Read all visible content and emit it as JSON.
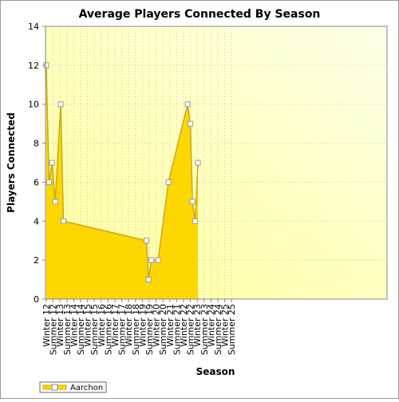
{
  "chart_data": {
    "type": "area",
    "title": "Average Players Connected By Season",
    "xlabel": "Season",
    "ylabel": "Players Connected",
    "ylim": [
      0,
      14
    ],
    "y_ticks": [
      0,
      2,
      4,
      6,
      8,
      10,
      12,
      14
    ],
    "categories": [
      "Winter 12",
      "Summer 12",
      "Winter 13",
      "Summer 13",
      "Winter 14",
      "Summer 14",
      "Winter 15",
      "Summer 15",
      "Winter 16",
      "Summer 16",
      "Winter 17",
      "Summer 17",
      "Winter 18",
      "Summer 18",
      "Winter 19",
      "Summer 19",
      "Winter 20",
      "Summer 20",
      "Winter 21",
      "Summer 21",
      "Winter 22",
      "Summer 22",
      "Winter 23",
      "Summer 23",
      "Winter 24",
      "Summer 24",
      "Winter 25",
      "Summer 25"
    ],
    "x_tick_labels": [
      "Winter 12",
      "Summer 12",
      "Winter 13",
      "Summer 13",
      "Winter 14",
      "Summer 14",
      "Winter 15",
      "Summer 15",
      "Winter 16",
      "Summer 16",
      "Winter 17",
      "Summer 17",
      "Winter 18",
      "Summer 18",
      "Winter 19",
      "Summer 19",
      "Winter 20",
      "Summer 20",
      "Winter 21",
      "Summer 21",
      "Winter 22",
      "Summer 22",
      "Winter 23",
      "Summer 23",
      "Winter 24",
      "Summer 24",
      "Winter 25",
      "Summer 25"
    ],
    "series": [
      {
        "name": "Aarchon",
        "color": "#ffd700",
        "line_color": "#c8a820",
        "points": [
          {
            "x": 0.0,
            "y": 12
          },
          {
            "x": 0.4,
            "y": 6
          },
          {
            "x": 0.85,
            "y": 7
          },
          {
            "x": 1.3,
            "y": 5
          },
          {
            "x": 2.1,
            "y": 10
          },
          {
            "x": 2.5,
            "y": 4
          },
          {
            "x": 14.6,
            "y": 3
          },
          {
            "x": 14.9,
            "y": 1
          },
          {
            "x": 15.3,
            "y": 2
          },
          {
            "x": 16.3,
            "y": 2
          },
          {
            "x": 17.8,
            "y": 6
          },
          {
            "x": 20.6,
            "y": 10
          },
          {
            "x": 21.0,
            "y": 9
          },
          {
            "x": 21.3,
            "y": 5
          },
          {
            "x": 21.7,
            "y": 4
          },
          {
            "x": 22.1,
            "y": 7
          }
        ]
      }
    ],
    "grid": true,
    "legend_position": "bottom-left",
    "plot_background": [
      "#ffffe8",
      "#ffff99"
    ]
  }
}
